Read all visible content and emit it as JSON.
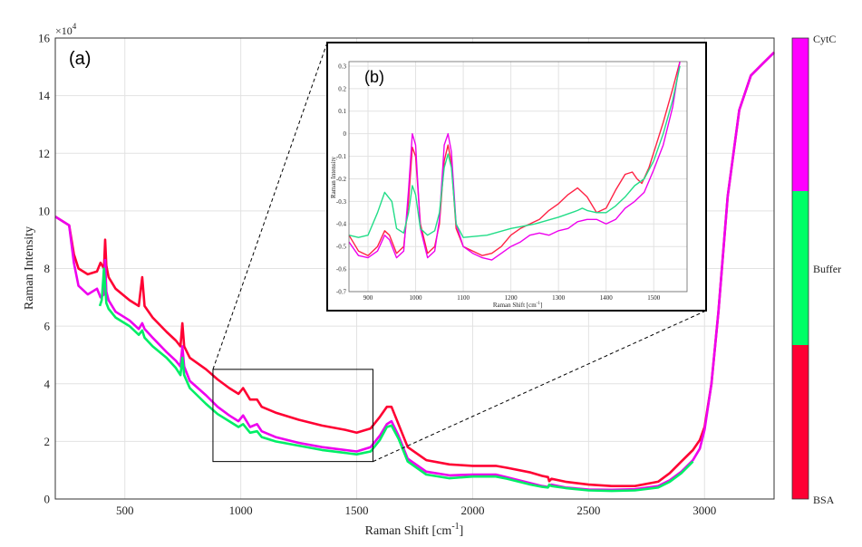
{
  "chart_data": [
    {
      "panel": "(a)",
      "type": "line",
      "xlabel": "Raman Shift [cm",
      "xlabel_sup": "-1",
      "xlabel_tail": "]",
      "ylabel": "Raman Intensity",
      "y_exponent_base": "×10",
      "y_exponent_power": "4",
      "xlim": [
        200,
        3300
      ],
      "ylim": [
        0,
        16
      ],
      "xticks": [
        500,
        1000,
        1500,
        2000,
        2500,
        3000
      ],
      "yticks": [
        0,
        2,
        4,
        6,
        8,
        10,
        12,
        14,
        16
      ],
      "grid": true,
      "zoom_box": {
        "x": [
          880,
          1570
        ],
        "y": [
          1.3,
          4.5
        ]
      },
      "series": [
        {
          "name": "BSA",
          "color": "#ff0033",
          "x": [
            200,
            260,
            280,
            300,
            340,
            380,
            395,
            410,
            415,
            420,
            430,
            460,
            520,
            560,
            575,
            585,
            620,
            680,
            720,
            740,
            748,
            756,
            780,
            850,
            900,
            950,
            990,
            1010,
            1040,
            1070,
            1090,
            1150,
            1250,
            1350,
            1450,
            1500,
            1560,
            1600,
            1630,
            1650,
            1680,
            1720,
            1800,
            1900,
            2000,
            2100,
            2150,
            2250,
            2300,
            2325,
            2330,
            2340,
            2400,
            2500,
            2600,
            2700,
            2800,
            2850,
            2900,
            2950,
            2980,
            3000,
            3030,
            3060,
            3100,
            3150,
            3200,
            3250,
            3300
          ],
          "y": [
            9.8,
            9.5,
            8.5,
            8.0,
            7.8,
            7.9,
            8.2,
            8.0,
            9.0,
            8.1,
            7.7,
            7.3,
            6.9,
            6.7,
            7.7,
            6.7,
            6.3,
            5.8,
            5.5,
            5.3,
            6.1,
            5.3,
            4.9,
            4.5,
            4.15,
            3.85,
            3.65,
            3.85,
            3.45,
            3.45,
            3.2,
            3.0,
            2.75,
            2.55,
            2.4,
            2.3,
            2.45,
            2.85,
            3.2,
            3.2,
            2.6,
            1.8,
            1.35,
            1.2,
            1.15,
            1.15,
            1.08,
            0.92,
            0.8,
            0.76,
            0.62,
            0.7,
            0.6,
            0.5,
            0.45,
            0.45,
            0.6,
            0.9,
            1.3,
            1.7,
            2.05,
            2.5,
            4.0,
            6.5,
            10.5,
            13.5,
            14.7,
            15.1,
            15.5
          ]
        },
        {
          "name": "CytC",
          "color": "#ee00ee",
          "x": [
            200,
            260,
            280,
            300,
            340,
            380,
            395,
            410,
            415,
            420,
            430,
            460,
            520,
            560,
            575,
            585,
            620,
            680,
            720,
            740,
            748,
            756,
            780,
            850,
            900,
            950,
            990,
            1010,
            1040,
            1070,
            1090,
            1150,
            1250,
            1350,
            1450,
            1500,
            1560,
            1600,
            1630,
            1650,
            1680,
            1720,
            1800,
            1900,
            2000,
            2100,
            2150,
            2250,
            2300,
            2325,
            2330,
            2340,
            2400,
            2500,
            2600,
            2700,
            2800,
            2850,
            2900,
            2950,
            2980,
            3000,
            3030,
            3060,
            3100,
            3150,
            3200,
            3250,
            3300
          ],
          "y": [
            9.8,
            9.5,
            8.2,
            7.4,
            7.1,
            7.3,
            7.0,
            7.1,
            8.3,
            7.2,
            6.9,
            6.5,
            6.2,
            5.9,
            6.1,
            5.9,
            5.6,
            5.1,
            4.8,
            4.6,
            5.3,
            4.6,
            4.1,
            3.6,
            3.2,
            2.9,
            2.7,
            2.9,
            2.5,
            2.6,
            2.35,
            2.15,
            1.95,
            1.8,
            1.7,
            1.65,
            1.8,
            2.2,
            2.6,
            2.7,
            2.2,
            1.4,
            0.95,
            0.82,
            0.85,
            0.85,
            0.75,
            0.55,
            0.45,
            0.42,
            0.45,
            0.5,
            0.4,
            0.33,
            0.32,
            0.34,
            0.45,
            0.65,
            0.95,
            1.35,
            1.75,
            2.4,
            4.0,
            6.5,
            10.5,
            13.5,
            14.7,
            15.1,
            15.5
          ]
        },
        {
          "name": "Buffer",
          "color": "#00ee66",
          "x": [
            392,
            400,
            405,
            410,
            420,
            430,
            460,
            520,
            560,
            575,
            585,
            620,
            680,
            720,
            740,
            748,
            756,
            780,
            850,
            900,
            950,
            990,
            1010,
            1040,
            1070,
            1090,
            1150,
            1250,
            1350,
            1450,
            1500,
            1560,
            1600,
            1630,
            1650,
            1680,
            1720,
            1800,
            1900,
            2000,
            2100,
            2150,
            2250,
            2300,
            2325,
            2330,
            2340,
            2400,
            2500,
            2600,
            2700,
            2800,
            2850,
            2900,
            2950
          ],
          "y": [
            6.7,
            6.9,
            7.4,
            8.0,
            6.8,
            6.6,
            6.3,
            6.0,
            5.7,
            5.85,
            5.6,
            5.3,
            4.9,
            4.55,
            4.3,
            4.9,
            4.3,
            3.85,
            3.3,
            2.95,
            2.7,
            2.5,
            2.6,
            2.3,
            2.35,
            2.15,
            2.0,
            1.85,
            1.7,
            1.6,
            1.55,
            1.65,
            2.05,
            2.5,
            2.55,
            2.1,
            1.3,
            0.85,
            0.72,
            0.78,
            0.78,
            0.7,
            0.5,
            0.42,
            0.4,
            0.5,
            0.45,
            0.38,
            0.3,
            0.28,
            0.3,
            0.4,
            0.6,
            0.9,
            1.3
          ]
        }
      ]
    },
    {
      "panel": "(b)",
      "type": "line",
      "xlabel": "Raman Shift [cm",
      "xlabel_sup": "-1",
      "xlabel_tail": "]",
      "ylabel": "Raman Intensity",
      "xlim": [
        860,
        1570
      ],
      "ylim": [
        -0.7,
        0.32
      ],
      "xticks": [
        900,
        1000,
        1100,
        1200,
        1300,
        1400,
        1500
      ],
      "yticks": [
        -0.7,
        -0.6,
        -0.5,
        -0.4,
        -0.3,
        -0.2,
        -0.1,
        0,
        0.1,
        0.2,
        0.3
      ],
      "grid": true,
      "series": [
        {
          "name": "BSA",
          "color": "#ff2244",
          "x": [
            860,
            880,
            900,
            920,
            935,
            945,
            960,
            975,
            985,
            993,
            1000,
            1010,
            1025,
            1040,
            1050,
            1060,
            1068,
            1075,
            1085,
            1100,
            1120,
            1140,
            1160,
            1180,
            1200,
            1220,
            1240,
            1260,
            1280,
            1300,
            1320,
            1340,
            1360,
            1380,
            1400,
            1420,
            1440,
            1455,
            1465,
            1475,
            1490,
            1505,
            1520,
            1540,
            1555
          ],
          "y": [
            -0.45,
            -0.52,
            -0.54,
            -0.5,
            -0.43,
            -0.45,
            -0.53,
            -0.5,
            -0.3,
            -0.06,
            -0.1,
            -0.4,
            -0.53,
            -0.5,
            -0.4,
            -0.12,
            -0.05,
            -0.13,
            -0.42,
            -0.5,
            -0.52,
            -0.54,
            -0.53,
            -0.5,
            -0.45,
            -0.42,
            -0.4,
            -0.38,
            -0.34,
            -0.31,
            -0.27,
            -0.24,
            -0.28,
            -0.35,
            -0.33,
            -0.25,
            -0.18,
            -0.17,
            -0.2,
            -0.22,
            -0.15,
            -0.05,
            0.05,
            0.2,
            0.32
          ]
        },
        {
          "name": "CytC",
          "color": "#ee00ee",
          "x": [
            860,
            880,
            900,
            920,
            935,
            945,
            960,
            975,
            985,
            993,
            1000,
            1010,
            1025,
            1040,
            1050,
            1060,
            1068,
            1075,
            1085,
            1100,
            1120,
            1140,
            1160,
            1180,
            1200,
            1220,
            1240,
            1260,
            1280,
            1300,
            1320,
            1340,
            1360,
            1380,
            1400,
            1420,
            1440,
            1460,
            1480,
            1500,
            1520,
            1540,
            1555
          ],
          "y": [
            -0.48,
            -0.54,
            -0.55,
            -0.52,
            -0.45,
            -0.47,
            -0.55,
            -0.52,
            -0.25,
            0.0,
            -0.05,
            -0.42,
            -0.55,
            -0.52,
            -0.38,
            -0.05,
            0.0,
            -0.08,
            -0.4,
            -0.5,
            -0.53,
            -0.55,
            -0.56,
            -0.53,
            -0.5,
            -0.48,
            -0.45,
            -0.44,
            -0.45,
            -0.43,
            -0.42,
            -0.39,
            -0.38,
            -0.38,
            -0.4,
            -0.38,
            -0.33,
            -0.3,
            -0.26,
            -0.16,
            -0.05,
            0.12,
            0.32
          ]
        },
        {
          "name": "Buffer",
          "color": "#22dd88",
          "x": [
            860,
            880,
            900,
            920,
            935,
            950,
            960,
            975,
            985,
            993,
            1000,
            1010,
            1025,
            1040,
            1050,
            1060,
            1068,
            1075,
            1085,
            1100,
            1150,
            1200,
            1250,
            1300,
            1340,
            1350,
            1360,
            1380,
            1400,
            1420,
            1440,
            1460,
            1480,
            1500,
            1520,
            1540,
            1555
          ],
          "y": [
            -0.45,
            -0.46,
            -0.45,
            -0.35,
            -0.26,
            -0.3,
            -0.42,
            -0.44,
            -0.35,
            -0.23,
            -0.27,
            -0.42,
            -0.45,
            -0.43,
            -0.35,
            -0.15,
            -0.09,
            -0.15,
            -0.4,
            -0.46,
            -0.45,
            -0.42,
            -0.4,
            -0.37,
            -0.34,
            -0.33,
            -0.34,
            -0.35,
            -0.35,
            -0.32,
            -0.28,
            -0.23,
            -0.2,
            -0.12,
            0.0,
            0.15,
            0.3
          ]
        }
      ]
    }
  ],
  "colorbar": {
    "segments": [
      {
        "label": "CytC",
        "color": "#ff00ff"
      },
      {
        "label": "Buffer",
        "color": "#00ff66"
      },
      {
        "label": "BSA",
        "color": "#ff0033"
      }
    ]
  }
}
